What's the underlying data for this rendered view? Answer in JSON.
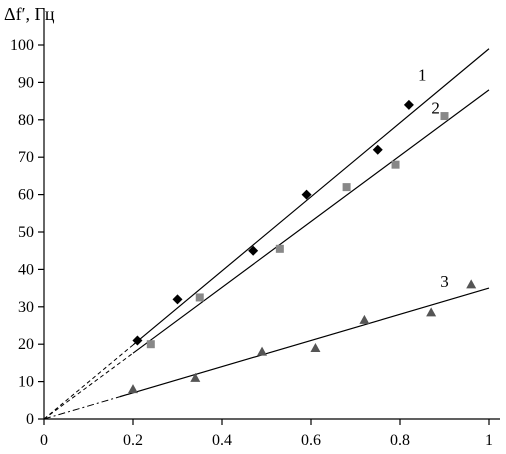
{
  "chart_data": {
    "type": "scatter",
    "title": "",
    "xlabel": "",
    "ylabel": "Δf′, Гц",
    "xlim": [
      0,
      1
    ],
    "ylim": [
      0,
      100
    ],
    "x_ticks": [
      "0",
      "0.2",
      "0.4",
      "0.6",
      "0.8",
      "1"
    ],
    "y_ticks": [
      "0",
      "10",
      "20",
      "30",
      "40",
      "50",
      "60",
      "70",
      "80",
      "90",
      "100"
    ],
    "grid": false,
    "legend": "none",
    "series": [
      {
        "label": "1",
        "marker": "diamond",
        "color": "#000000",
        "points": [
          {
            "x": 0.21,
            "y": 21
          },
          {
            "x": 0.3,
            "y": 32
          },
          {
            "x": 0.47,
            "y": 45
          },
          {
            "x": 0.59,
            "y": 60
          },
          {
            "x": 0.75,
            "y": 72
          },
          {
            "x": 0.82,
            "y": 84
          }
        ],
        "fit_line": {
          "x": [
            0,
            1
          ],
          "y": [
            0,
            99
          ]
        },
        "extrapolation_end_x": 0.2
      },
      {
        "label": "2",
        "marker": "square",
        "color": "#888888",
        "points": [
          {
            "x": 0.24,
            "y": 20
          },
          {
            "x": 0.35,
            "y": 32.5
          },
          {
            "x": 0.53,
            "y": 45.5
          },
          {
            "x": 0.68,
            "y": 62
          },
          {
            "x": 0.79,
            "y": 68
          },
          {
            "x": 0.9,
            "y": 81
          }
        ],
        "fit_line": {
          "x": [
            0,
            1
          ],
          "y": [
            0,
            88
          ]
        },
        "extrapolation_end_x": 0.2
      },
      {
        "label": "3",
        "marker": "triangle",
        "color": "#555555",
        "points": [
          {
            "x": 0.2,
            "y": 8
          },
          {
            "x": 0.34,
            "y": 11
          },
          {
            "x": 0.49,
            "y": 18
          },
          {
            "x": 0.61,
            "y": 19
          },
          {
            "x": 0.72,
            "y": 26.5
          },
          {
            "x": 0.87,
            "y": 28.5
          },
          {
            "x": 0.96,
            "y": 36
          }
        ],
        "fit_line": {
          "x": [
            0,
            1
          ],
          "y": [
            0,
            35
          ]
        },
        "extrapolation_end_x": 0.17
      }
    ]
  }
}
